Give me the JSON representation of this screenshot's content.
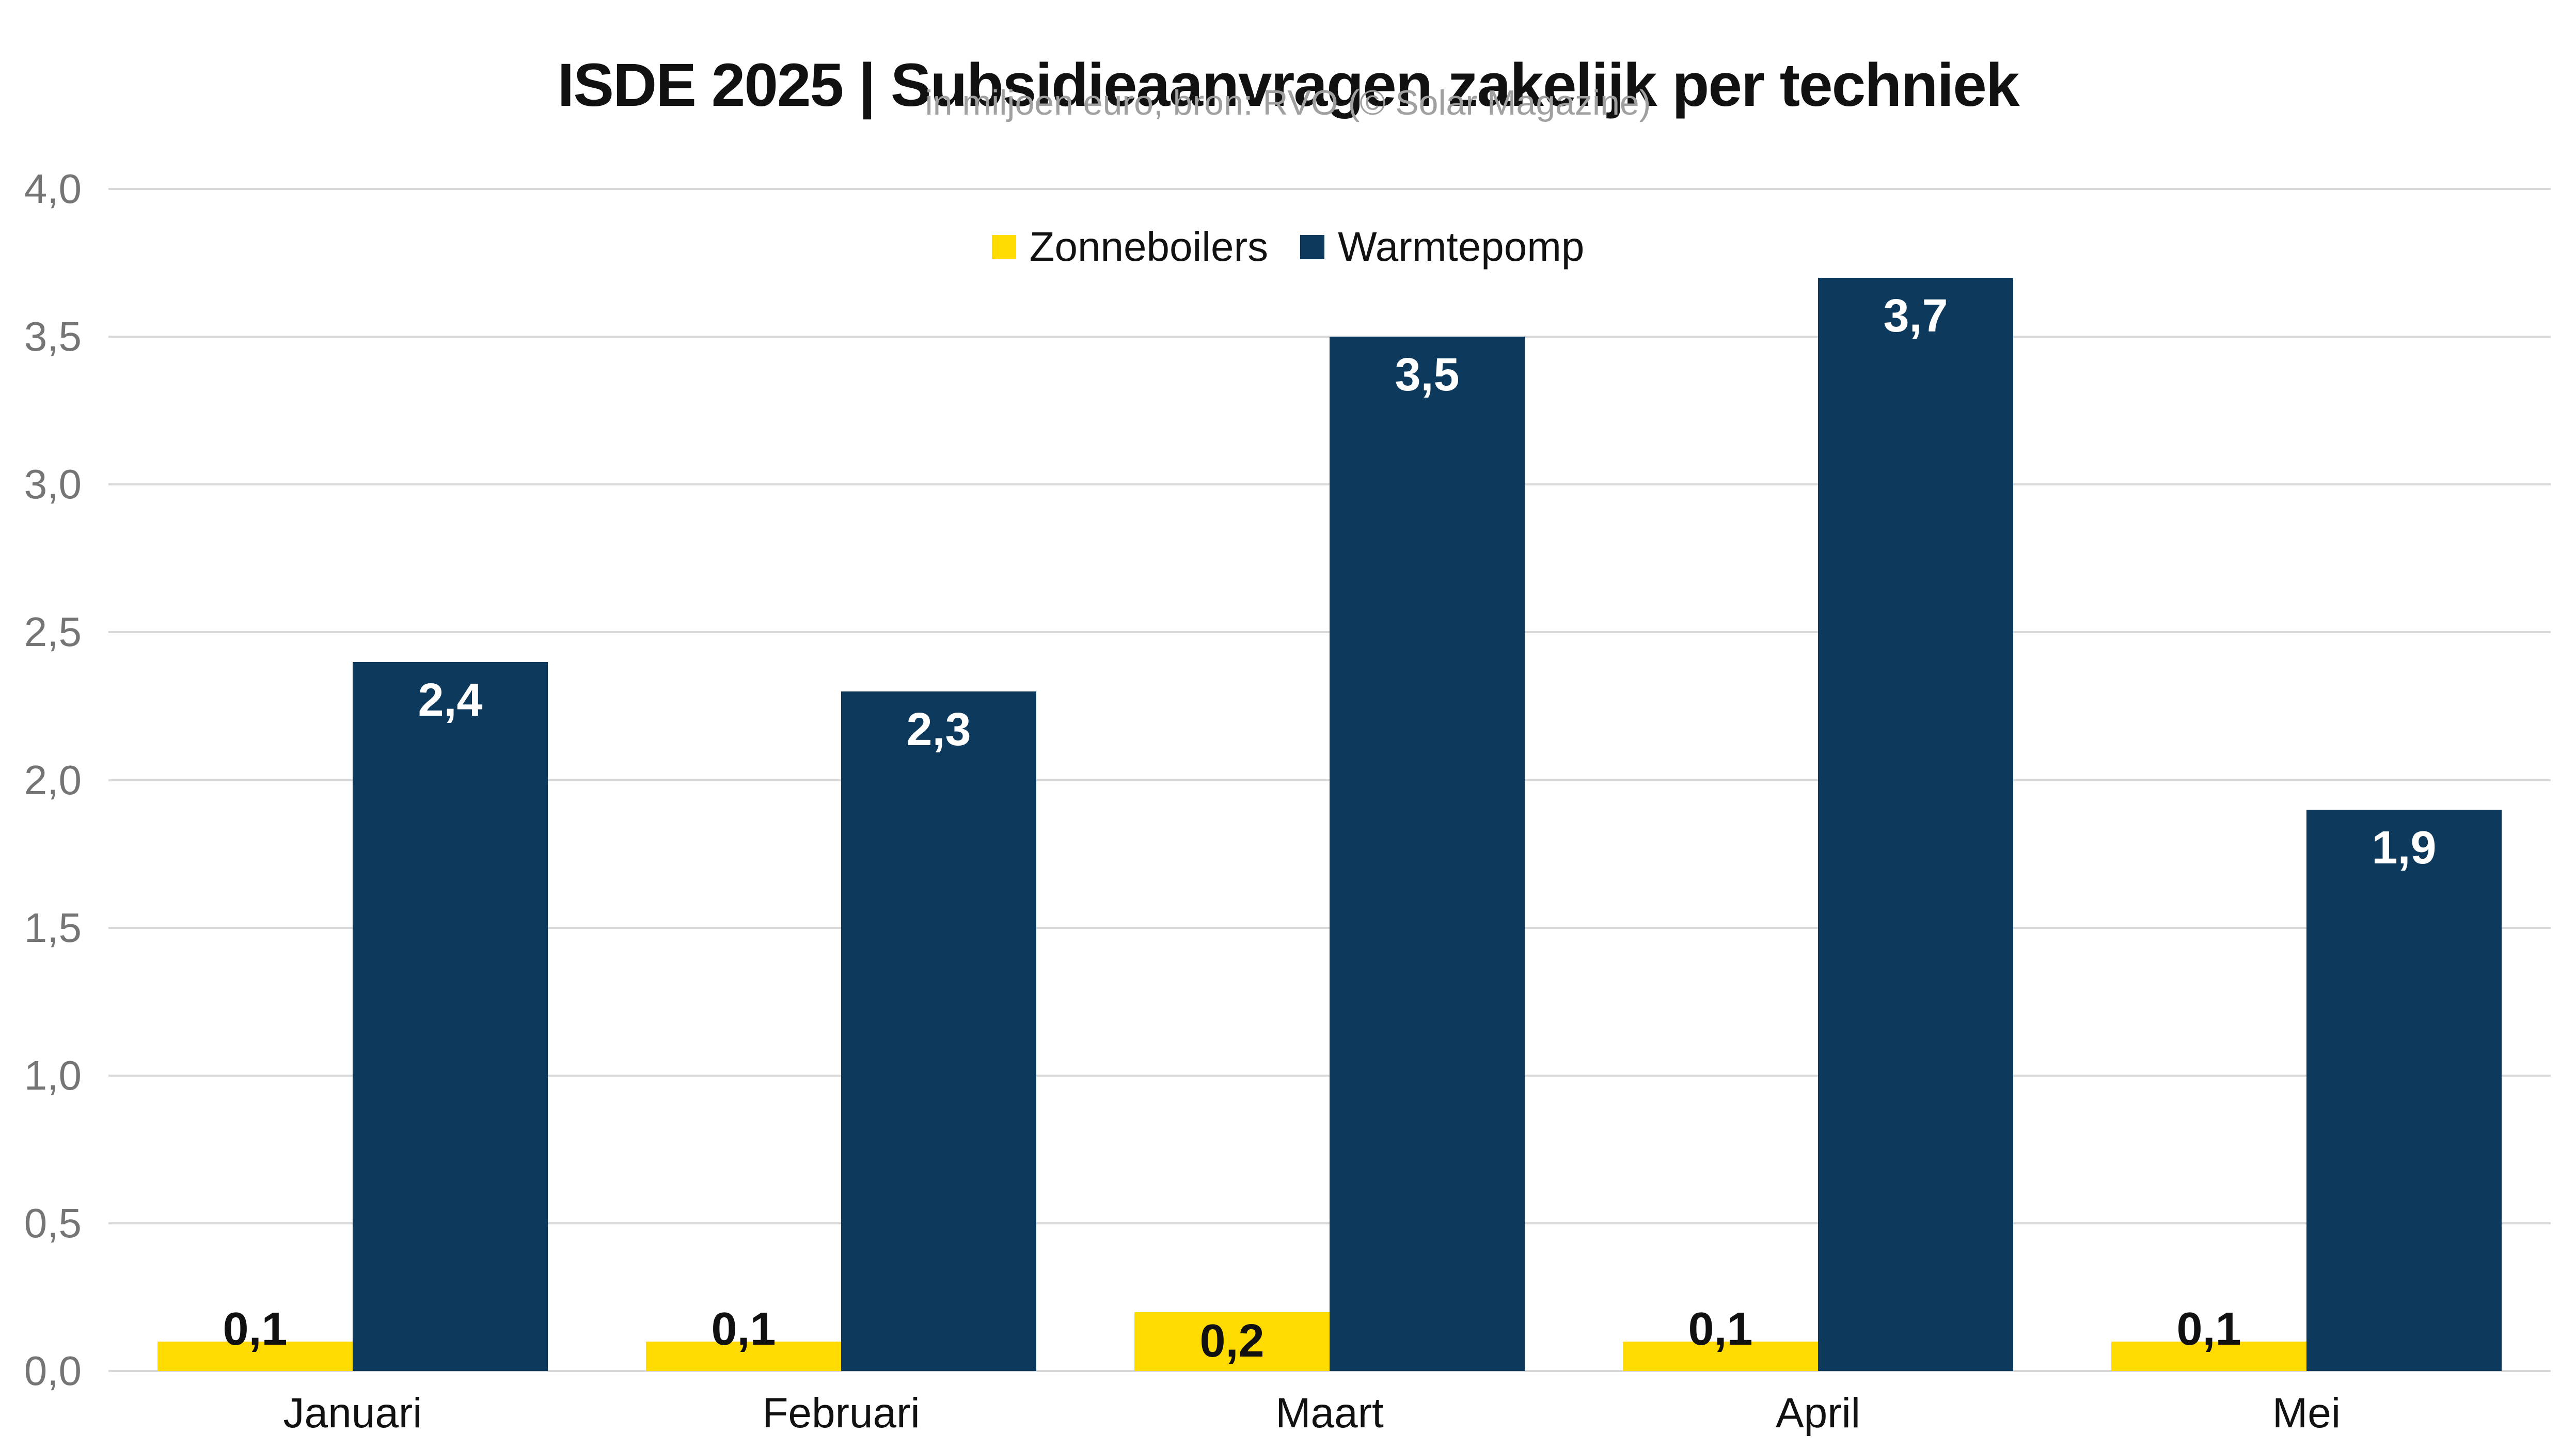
{
  "chart_data": {
    "type": "bar",
    "title": "ISDE 2025 | Subsidieaanvragen zakelijk per techniek",
    "subtitle": "in miljoen euro, bron: RVO (© Solar Magazine)",
    "categories": [
      "Januari",
      "Februari",
      "Maart",
      "April",
      "Mei"
    ],
    "series": [
      {
        "name": "Zonneboilers",
        "color": "#ffdb00",
        "label_color": "#111111",
        "values": [
          0.1,
          0.1,
          0.2,
          0.1,
          0.1
        ],
        "labels": [
          "0,1",
          "0,1",
          "0,2",
          "0,1",
          "0,1"
        ]
      },
      {
        "name": "Warmtepomp",
        "color": "#0d3a5c",
        "label_color": "#ffffff",
        "values": [
          2.4,
          2.3,
          3.5,
          3.7,
          1.9
        ],
        "labels": [
          "2,4",
          "2,3",
          "3,5",
          "3,7",
          "1,9"
        ]
      }
    ],
    "y_axis": {
      "min": 0,
      "max": 4,
      "step": 0.5,
      "tick_labels": [
        "0,0",
        "0,5",
        "1,0",
        "1,5",
        "2,0",
        "2,5",
        "3,0",
        "3,5",
        "4,0"
      ]
    },
    "grid": true,
    "legend_position": "top-center",
    "colors": {
      "grid": "#d9d9d9",
      "tick_text": "#757575",
      "axis_text": "#111111",
      "title": "#111111",
      "subtitle": "#a0a0a0",
      "background": "#ffffff"
    }
  }
}
